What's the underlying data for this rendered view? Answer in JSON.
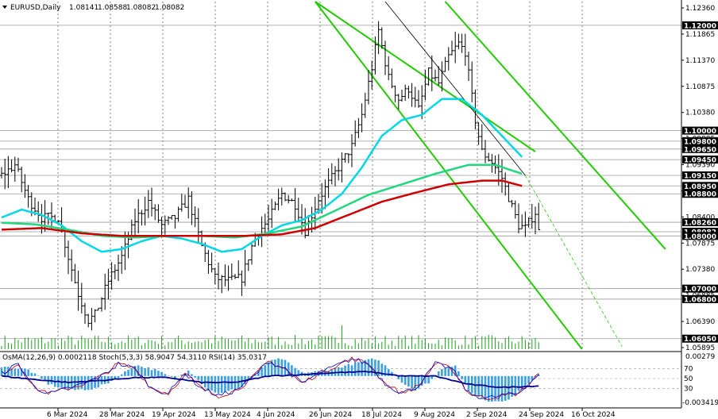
{
  "header": {
    "symbol_text": "EURUSD,Daily",
    "ohlc": [
      "1.08141",
      "1.08588",
      "1.08082",
      "1.08082"
    ],
    "indicator_text": "OsMA(12,26,9) 0.0002118   Stoch(5,3,3) 58.9047 54.3110   RSI(14) 35.0317"
  },
  "colors": {
    "background": "#ffffff",
    "bars": "#000000",
    "grid": "#000000",
    "hline": "#9a9a9a",
    "ema_fast": "#00d8e8",
    "ema_mid": "#20d880",
    "ema_slow": "#d00000",
    "channel": "#22cc00",
    "trend": "#000000",
    "volume": "#18a018",
    "osma": "#3aa0e0",
    "stoch_main": "#0000cc",
    "stoch_signal": "#cc0000",
    "rsi": "#00008b",
    "tag_bg": "#000000",
    "tag_fg": "#ffffff"
  },
  "chart_data": {
    "type": "candlestick",
    "symbol": "EURUSD",
    "timeframe": "Daily",
    "ylim": [
      1.0585,
      1.1245
    ],
    "price_ticks": [
      "1.12360",
      "1.11865",
      "1.11370",
      "1.10875",
      "1.10380",
      "1.09885",
      "1.09390",
      "1.08895",
      "1.08400",
      "1.07875",
      "1.07380",
      "1.06885",
      "1.06390",
      "1.05895"
    ],
    "x_labels": [
      "6 Mar 2024",
      "28 Mar 2024",
      "19 Apr 2024",
      "13 May 2024",
      "4 Jun 2024",
      "26 Jun 2024",
      "18 Jul 2024",
      "9 Aug 2024",
      "2 Sep 2024",
      "24 Sep 2024",
      "16 Oct 2024"
    ],
    "levels": [
      {
        "value": 1.12,
        "label": "1.12000",
        "tagged": true
      },
      {
        "value": 1.1,
        "label": "1.10000",
        "tagged": true
      },
      {
        "value": 1.098,
        "label": "1.09800",
        "tagged": true
      },
      {
        "value": 1.0965,
        "label": "1.09650",
        "tagged": true
      },
      {
        "value": 1.0945,
        "label": "1.09450",
        "tagged": true
      },
      {
        "value": 1.0915,
        "label": "1.09150",
        "tagged": true
      },
      {
        "value": 1.0895,
        "label": "1.08950",
        "tagged": true
      },
      {
        "value": 1.088,
        "label": "1.08800",
        "tagged": true
      },
      {
        "value": 1.0826,
        "label": "1.08260",
        "tagged": true
      },
      {
        "value": 1.0808,
        "label": "1.08082",
        "tagged": true
      },
      {
        "value": 1.08,
        "label": "1.08000",
        "tagged": true
      },
      {
        "value": 1.07,
        "label": "1.07000",
        "tagged": true
      },
      {
        "value": 1.068,
        "label": "1.06800",
        "tagged": true
      },
      {
        "value": 1.0605,
        "label": "1.06050",
        "tagged": true
      }
    ],
    "close_anchors": [
      [
        0,
        1.0915
      ],
      [
        4,
        1.0935
      ],
      [
        8,
        1.087
      ],
      [
        12,
        1.0835
      ],
      [
        17,
        1.0835
      ],
      [
        20,
        1.076
      ],
      [
        23,
        1.069
      ],
      [
        26,
        1.064
      ],
      [
        28,
        1.065
      ],
      [
        32,
        1.0715
      ],
      [
        36,
        1.076
      ],
      [
        40,
        1.083
      ],
      [
        44,
        1.0865
      ],
      [
        48,
        1.082
      ],
      [
        52,
        1.0835
      ],
      [
        56,
        1.087
      ],
      [
        60,
        1.078
      ],
      [
        64,
        1.072
      ],
      [
        68,
        1.0715
      ],
      [
        72,
        1.072
      ],
      [
        76,
        1.08
      ],
      [
        80,
        1.083
      ],
      [
        84,
        1.088
      ],
      [
        88,
        1.086
      ],
      [
        91,
        1.081
      ],
      [
        95,
        1.087
      ],
      [
        98,
        1.09
      ],
      [
        102,
        1.094
      ],
      [
        105,
        1.097
      ],
      [
        108,
        1.103
      ],
      [
        111,
        1.112
      ],
      [
        113,
        1.119
      ],
      [
        116,
        1.11
      ],
      [
        119,
        1.106
      ],
      [
        122,
        1.108
      ],
      [
        125,
        1.104
      ],
      [
        128,
        1.111
      ],
      [
        131,
        1.109
      ],
      [
        134,
        1.114
      ],
      [
        137,
        1.1165
      ],
      [
        139,
        1.115
      ],
      [
        142,
        1.102
      ],
      [
        144,
        1.096
      ],
      [
        147,
        1.094
      ],
      [
        150,
        1.091
      ],
      [
        153,
        1.0855
      ],
      [
        155,
        1.082
      ],
      [
        157,
        1.0815
      ],
      [
        160,
        1.0845
      ],
      [
        161,
        1.0808
      ]
    ],
    "ema_fast_anchors": [
      [
        0,
        1.0835
      ],
      [
        6,
        1.085
      ],
      [
        12,
        1.084
      ],
      [
        18,
        1.082
      ],
      [
        24,
        1.079
      ],
      [
        30,
        1.077
      ],
      [
        36,
        1.0775
      ],
      [
        42,
        1.079
      ],
      [
        48,
        1.08
      ],
      [
        54,
        1.0795
      ],
      [
        60,
        1.0785
      ],
      [
        66,
        1.077
      ],
      [
        72,
        1.0775
      ],
      [
        78,
        1.08
      ],
      [
        84,
        1.082
      ],
      [
        90,
        1.083
      ],
      [
        96,
        1.085
      ],
      [
        102,
        1.088
      ],
      [
        108,
        1.093
      ],
      [
        114,
        1.099
      ],
      [
        120,
        1.102
      ],
      [
        126,
        1.103
      ],
      [
        132,
        1.106
      ],
      [
        138,
        1.106
      ],
      [
        144,
        1.103
      ],
      [
        150,
        1.099
      ],
      [
        156,
        1.095
      ]
    ],
    "ema_mid_anchors": [
      [
        0,
        1.0825
      ],
      [
        10,
        1.0822
      ],
      [
        20,
        1.0812
      ],
      [
        30,
        1.08
      ],
      [
        40,
        1.0797
      ],
      [
        50,
        1.08
      ],
      [
        60,
        1.08
      ],
      [
        70,
        1.0797
      ],
      [
        80,
        1.0805
      ],
      [
        90,
        1.0818
      ],
      [
        100,
        1.0848
      ],
      [
        110,
        1.0878
      ],
      [
        120,
        1.0898
      ],
      [
        130,
        1.0918
      ],
      [
        140,
        1.0935
      ],
      [
        148,
        1.0935
      ],
      [
        156,
        1.0918
      ]
    ],
    "ema_slow_anchors": [
      [
        0,
        1.0812
      ],
      [
        12,
        1.0815
      ],
      [
        24,
        1.0805
      ],
      [
        36,
        1.08
      ],
      [
        48,
        1.08
      ],
      [
        60,
        1.08
      ],
      [
        72,
        1.08
      ],
      [
        84,
        1.0803
      ],
      [
        94,
        1.0815
      ],
      [
        104,
        1.084
      ],
      [
        114,
        1.0865
      ],
      [
        124,
        1.0882
      ],
      [
        134,
        1.0898
      ],
      [
        144,
        1.0905
      ],
      [
        150,
        1.0905
      ],
      [
        156,
        1.0895
      ]
    ],
    "channel_lines": [
      {
        "from": [
          94,
          1.1245
        ],
        "to": [
          174,
          1.0585
        ]
      },
      {
        "from": [
          133,
          1.1245
        ],
        "to": [
          199,
          1.0775
        ]
      },
      {
        "from": [
          94,
          1.1245
        ],
        "to": [
          160,
          1.096
        ]
      }
    ],
    "trend_line": {
      "from": [
        115,
        1.1245
      ],
      "to": [
        157,
        1.0915
      ],
      "dash_to": [
        186,
        1.059
      ]
    },
    "osma_anchors": [
      [
        0,
        0.0012
      ],
      [
        8,
        0.0008
      ],
      [
        14,
        -0.001
      ],
      [
        20,
        -0.0018
      ],
      [
        28,
        -0.0016
      ],
      [
        34,
        -0.0004
      ],
      [
        40,
        0.0014
      ],
      [
        46,
        0.0008
      ],
      [
        52,
        -0.0004
      ],
      [
        56,
        0.0008
      ],
      [
        62,
        -0.0018
      ],
      [
        66,
        -0.0022
      ],
      [
        72,
        -0.0014
      ],
      [
        76,
        0.0002
      ],
      [
        80,
        0.0018
      ],
      [
        84,
        0.0022
      ],
      [
        90,
        0.0004
      ],
      [
        96,
        0.0006
      ],
      [
        102,
        0.0012
      ],
      [
        108,
        0.0018
      ],
      [
        112,
        0.0022
      ],
      [
        116,
        0.001
      ],
      [
        120,
        -0.0008
      ],
      [
        124,
        -0.0018
      ],
      [
        128,
        -0.0008
      ],
      [
        132,
        0.001
      ],
      [
        136,
        0.0014
      ],
      [
        140,
        -0.002
      ],
      [
        146,
        -0.0032
      ],
      [
        152,
        -0.003
      ],
      [
        158,
        -0.001
      ],
      [
        161,
        0.0002
      ]
    ],
    "osma_ylim": [
      -0.003419,
      0.00279
    ],
    "osma_label_top": "0.00279",
    "osma_label_bottom": "-0.003419",
    "oscillator_levels": [
      "70",
      "50",
      "30"
    ],
    "stoch_anchors": [
      [
        0,
        60
      ],
      [
        5,
        80
      ],
      [
        10,
        30
      ],
      [
        15,
        20
      ],
      [
        20,
        30
      ],
      [
        25,
        40
      ],
      [
        30,
        55
      ],
      [
        35,
        80
      ],
      [
        40,
        70
      ],
      [
        45,
        30
      ],
      [
        50,
        20
      ],
      [
        55,
        60
      ],
      [
        60,
        30
      ],
      [
        65,
        15
      ],
      [
        70,
        25
      ],
      [
        75,
        50
      ],
      [
        80,
        85
      ],
      [
        85,
        70
      ],
      [
        90,
        40
      ],
      [
        95,
        60
      ],
      [
        100,
        75
      ],
      [
        105,
        90
      ],
      [
        110,
        80
      ],
      [
        115,
        40
      ],
      [
        120,
        20
      ],
      [
        125,
        35
      ],
      [
        130,
        80
      ],
      [
        135,
        70
      ],
      [
        140,
        20
      ],
      [
        145,
        10
      ],
      [
        150,
        15
      ],
      [
        155,
        20
      ],
      [
        161,
        58.9
      ]
    ],
    "rsi_anchors": [
      [
        0,
        55
      ],
      [
        10,
        48
      ],
      [
        20,
        42
      ],
      [
        30,
        46
      ],
      [
        40,
        52
      ],
      [
        50,
        52
      ],
      [
        60,
        42
      ],
      [
        70,
        42
      ],
      [
        80,
        55
      ],
      [
        90,
        58
      ],
      [
        100,
        62
      ],
      [
        110,
        64
      ],
      [
        120,
        55
      ],
      [
        130,
        55
      ],
      [
        140,
        38
      ],
      [
        150,
        32
      ],
      [
        161,
        35
      ]
    ]
  }
}
